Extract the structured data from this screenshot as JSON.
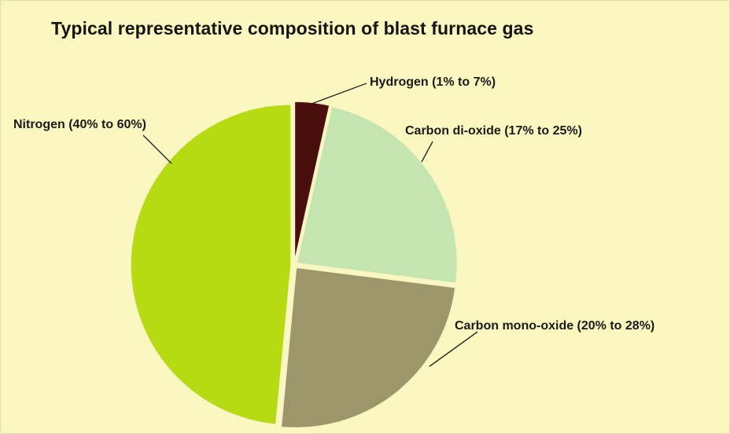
{
  "chart_data": {
    "type": "pie",
    "title": "Typical representative composition of blast furnace gas",
    "background_color": "#fbf7c0",
    "exploded": true,
    "slices": [
      {
        "label": "Hydrogen (1% to 7%)",
        "value": 3.5,
        "color": "#4a0f0c"
      },
      {
        "label": "Carbon di-oxide (17% to 25%)",
        "value": 23.5,
        "color": "#c4e5b0"
      },
      {
        "label": "Carbon mono-oxide (20% to 28%)",
        "value": 24.5,
        "color": "#9c966a"
      },
      {
        "label": "Nitrogen (40% to 60%)",
        "value": 48.5,
        "color": "#b7db12"
      }
    ]
  }
}
